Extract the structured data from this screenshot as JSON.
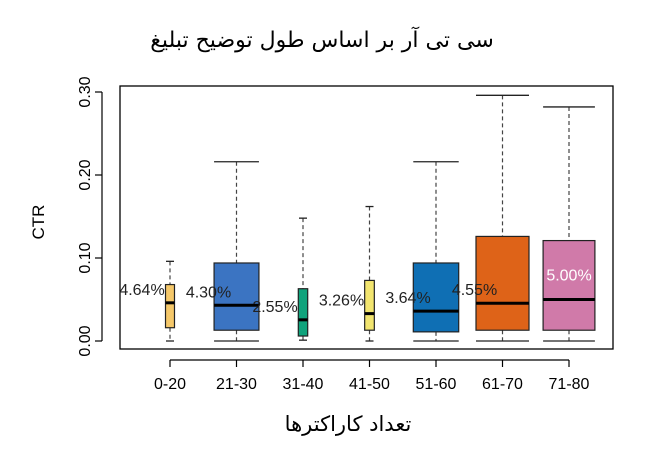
{
  "chart_data": {
    "type": "box",
    "title": "سی تی آر بر اساس طول توضیح تبلیغ",
    "xlabel": "تعداد کاراکترها",
    "ylabel": "CTR",
    "ylim": [
      0,
      0.3
    ],
    "yticks": [
      "0.00",
      "0.10",
      "0.20",
      "0.30"
    ],
    "grid": false,
    "categories": [
      "0-20",
      "21-30",
      "31-40",
      "41-50",
      "51-60",
      "61-70",
      "71-80"
    ],
    "boxes": [
      {
        "category": "0-20",
        "min": 0.0,
        "q1": 0.016,
        "median": 0.046,
        "q3": 0.068,
        "max": 0.096,
        "label": "4.64%",
        "color": "#f5c86a"
      },
      {
        "category": "21-30",
        "min": 0.0,
        "q1": 0.013,
        "median": 0.043,
        "q3": 0.094,
        "max": 0.216,
        "label": "4.30%",
        "color": "#3b74c2"
      },
      {
        "category": "31-40",
        "min": 0.001,
        "q1": 0.006,
        "median": 0.0255,
        "q3": 0.063,
        "max": 0.148,
        "label": "2.55%",
        "color": "#10a37c"
      },
      {
        "category": "41-50",
        "min": 0.0,
        "q1": 0.013,
        "median": 0.033,
        "q3": 0.073,
        "max": 0.162,
        "label": "3.26%",
        "color": "#f2e56f"
      },
      {
        "category": "51-60",
        "min": 0.0,
        "q1": 0.011,
        "median": 0.036,
        "q3": 0.094,
        "max": 0.216,
        "label": "3.64%",
        "color": "#0f6fb4"
      },
      {
        "category": "61-70",
        "min": 0.0,
        "q1": 0.013,
        "median": 0.0455,
        "q3": 0.126,
        "max": 0.296,
        "label": "4.55%",
        "color": "#de6318"
      },
      {
        "category": "71-80",
        "min": 0.0,
        "q1": 0.013,
        "median": 0.05,
        "q3": 0.121,
        "max": 0.282,
        "label": "5.00%",
        "color": "#d07aa9"
      }
    ]
  }
}
